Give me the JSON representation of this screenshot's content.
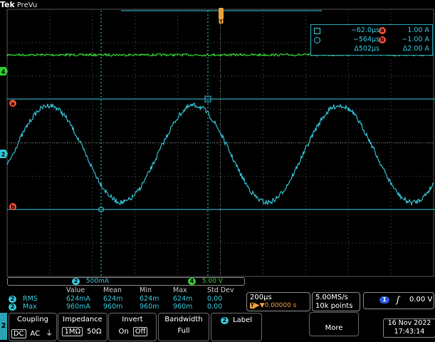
{
  "header": {
    "brand": "Tek",
    "mode": "PreVu"
  },
  "graticule": {
    "columns": 10,
    "rows": 8
  },
  "channels": {
    "ch1_color": "#35c6d9",
    "ch4_color": "#2fcf2f",
    "cursor_color": "#e8513a"
  },
  "markers": {
    "trigger_letter": "T",
    "ch4_marker": "4",
    "ch2_marker": "2",
    "cursor_a": "a",
    "cursor_b": "b"
  },
  "cursor_readout": {
    "row1": {
      "time": "−62.0µs",
      "letter": "a",
      "value": "1.00 A"
    },
    "row2": {
      "time": "−564µs",
      "letter": "b",
      "value": "−1.00 A"
    },
    "row3": {
      "time": "Δ502µs",
      "value": "Δ2.00 A"
    }
  },
  "scale_bar": {
    "ch2_num": "2",
    "ch2_scale": "500mA",
    "ch4_num": "4",
    "ch4_scale": "5.00 V"
  },
  "measurements": {
    "headers": [
      "Value",
      "Mean",
      "Min",
      "Max",
      "Std Dev"
    ],
    "rows": [
      {
        "ch": "2",
        "name": "RMS",
        "values": [
          "624mA",
          "624m",
          "624m",
          "624m",
          "0.00"
        ]
      },
      {
        "ch": "2",
        "name": "Max",
        "values": [
          "960mA",
          "960m",
          "960m",
          "960m",
          "0.00"
        ]
      }
    ]
  },
  "timebase": {
    "scale": "200µs",
    "position": "▶▼0.00000 s",
    "trig_icon": "T"
  },
  "acquisition": {
    "rate": "5.00MS/s",
    "points": "10k points"
  },
  "trigger": {
    "source": "1",
    "slope": "ʃ",
    "level": "0.00 V"
  },
  "menu": {
    "channel": "2",
    "coupling": {
      "title": "Coupling",
      "options": [
        "DC",
        "AC",
        "⏚"
      ],
      "selected": 0
    },
    "impedance": {
      "title": "Impedance",
      "options": [
        "1MΩ",
        "50Ω"
      ],
      "selected": 0
    },
    "invert": {
      "title": "Invert",
      "options": [
        "On",
        "Off"
      ],
      "selected": 1
    },
    "bandwidth": {
      "title": "Bandwidth",
      "value": "Full"
    },
    "label": {
      "chip": "2",
      "title": "Label"
    },
    "more": {
      "title": "More"
    }
  },
  "datetime": {
    "date": "16 Nov 2022",
    "time": "17:43:14"
  }
}
